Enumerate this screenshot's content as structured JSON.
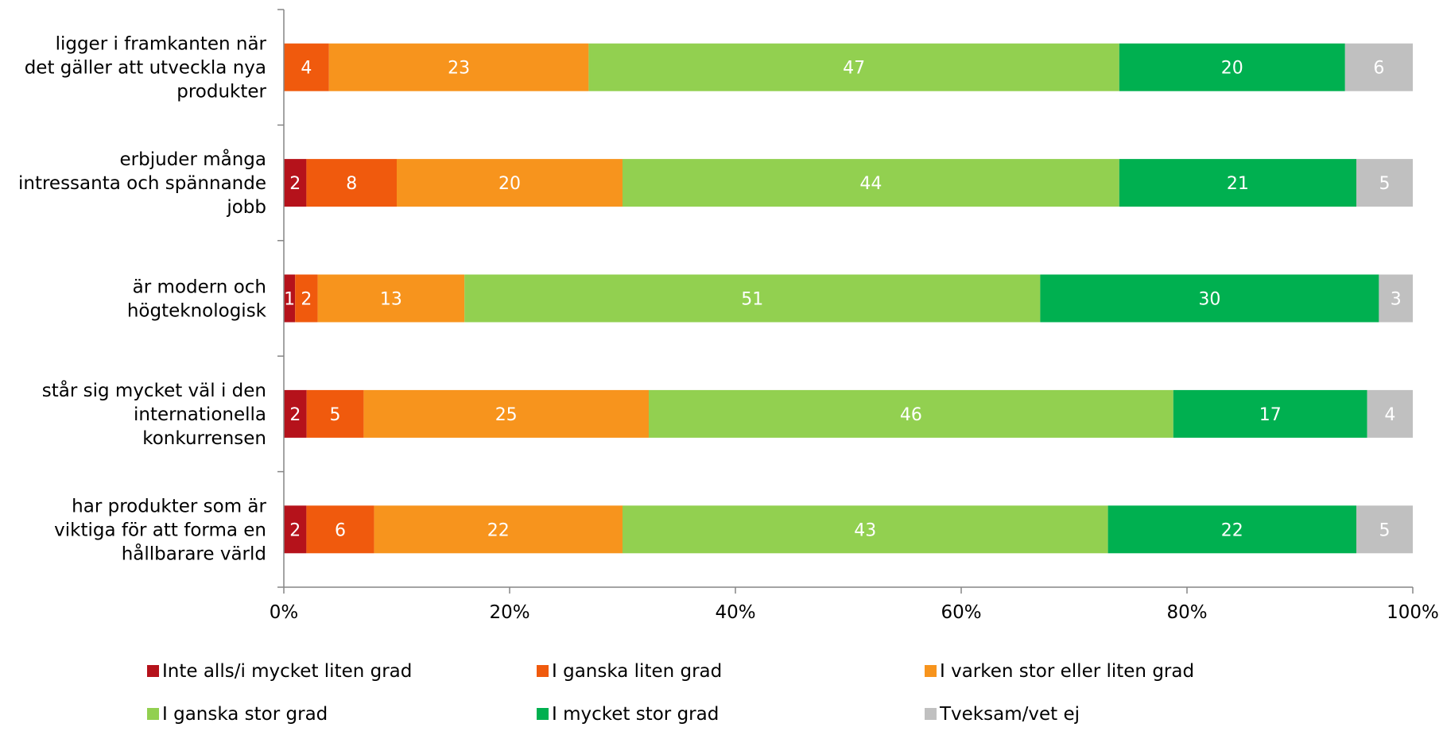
{
  "chart_data": {
    "type": "bar",
    "orientation": "horizontal",
    "stacked": true,
    "categories": [
      [
        "ligger i framkanten när",
        "det gäller att utveckla nya",
        "produkter"
      ],
      [
        "erbjuder många",
        "intressanta och spännande",
        "jobb"
      ],
      [
        "är modern och",
        "högteknologisk"
      ],
      [
        "står sig mycket väl i den",
        "internationella",
        "konkurrensen"
      ],
      [
        "har produkter som är",
        "viktiga för att forma en",
        "hållbarare värld"
      ]
    ],
    "series": [
      {
        "name": "Inte alls/i mycket liten grad",
        "color": "#b5121b",
        "values": [
          0,
          2,
          1,
          2,
          2
        ]
      },
      {
        "name": "I ganska liten grad",
        "color": "#f05a0d",
        "values": [
          4,
          8,
          2,
          5,
          6
        ]
      },
      {
        "name": "I varken stor eller liten grad",
        "color": "#f7941d",
        "values": [
          23,
          20,
          13,
          25,
          22
        ]
      },
      {
        "name": "I ganska stor grad",
        "color": "#92d050",
        "values": [
          47,
          44,
          51,
          46,
          43
        ]
      },
      {
        "name": "I mycket stor grad",
        "color": "#00b050",
        "values": [
          20,
          21,
          30,
          17,
          22
        ]
      },
      {
        "name": "Tveksam/vet ej",
        "color": "#c0c0c0",
        "values": [
          6,
          5,
          3,
          4,
          5
        ]
      }
    ],
    "xlim": [
      0,
      100
    ],
    "x_ticks": [
      "0%",
      "20%",
      "40%",
      "60%",
      "80%",
      "100%"
    ],
    "grid": false,
    "legend_position": "bottom",
    "title": "",
    "xlabel": "",
    "ylabel": ""
  }
}
